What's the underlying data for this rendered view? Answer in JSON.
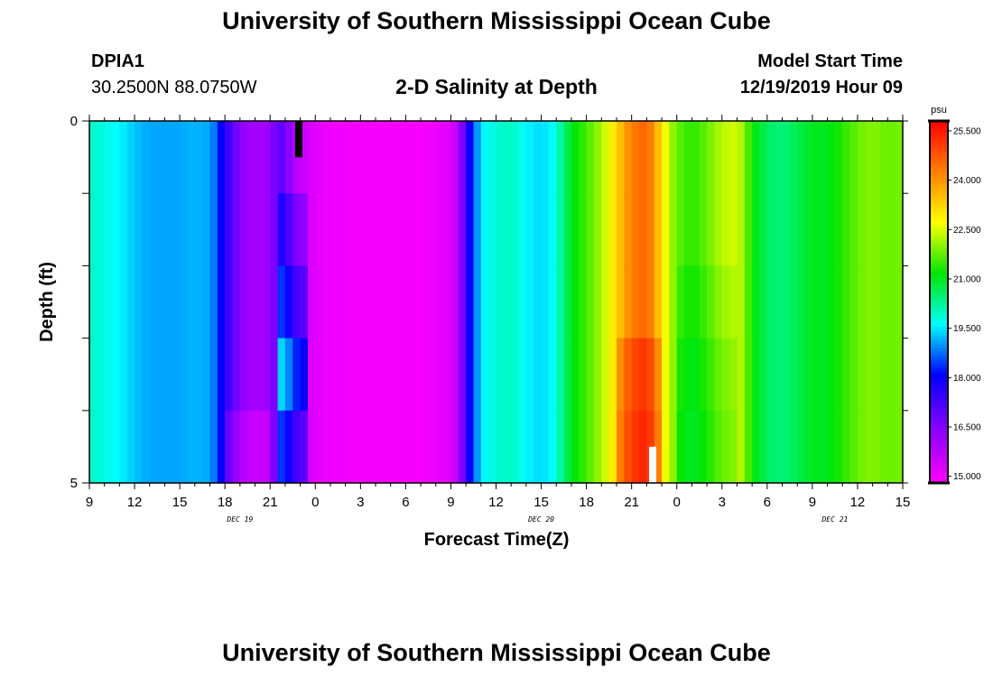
{
  "header": {
    "title": "University of Southern Mississippi Ocean Cube",
    "station": "DPIA1",
    "coords": "30.2500N 88.0750W",
    "subtitle": "2-D Salinity at Depth",
    "start_label": "Model Start Time",
    "start_time": "12/19/2019 Hour 09"
  },
  "footer": {
    "title": "University of Southern Mississippi Ocean Cube"
  },
  "chart_data": {
    "type": "heatmap",
    "xlabel": "Forecast Time(Z)",
    "ylabel": "Depth (ft)",
    "x_range_hours": [
      9,
      63
    ],
    "y_range": [
      0,
      5
    ],
    "y_ticks": [
      {
        "value": 0,
        "label": "0"
      },
      {
        "value": 1,
        "label": ""
      },
      {
        "value": 2,
        "label": ""
      },
      {
        "value": 3,
        "label": ""
      },
      {
        "value": 4,
        "label": ""
      },
      {
        "value": 5,
        "label": "5"
      }
    ],
    "x_tick_labels": [
      "9",
      "12",
      "15",
      "18",
      "21",
      "0",
      "3",
      "6",
      "9",
      "12",
      "15",
      "18",
      "21",
      "0",
      "3",
      "6",
      "9",
      "12",
      "15"
    ],
    "day_labels": [
      {
        "hour": 19,
        "label": "DEC 19"
      },
      {
        "hour": 39,
        "label": "DEC 20"
      },
      {
        "hour": 58.5,
        "label": "DEC 21"
      }
    ],
    "colorbar": {
      "unit": "psu",
      "range": [
        14.8,
        25.8
      ],
      "tick_labels": [
        "15.000",
        "16.500",
        "18.000",
        "19.500",
        "21.000",
        "22.500",
        "24.000",
        "25.500"
      ],
      "tick_values": [
        15.0,
        16.5,
        18.0,
        19.5,
        21.0,
        22.5,
        24.0,
        25.5
      ]
    },
    "time_step_hours": 0.5,
    "depth_layers": 5,
    "salinity_base": [
      [
        9,
        20.0
      ],
      [
        10,
        19.8
      ],
      [
        11,
        19.6
      ],
      [
        12,
        19.3
      ],
      [
        13,
        19.1
      ],
      [
        14,
        19.1
      ],
      [
        15,
        19.1
      ],
      [
        16,
        19.2
      ],
      [
        17,
        19.1
      ],
      [
        17.5,
        18.6
      ],
      [
        18,
        17.6
      ],
      [
        18.5,
        17.0
      ],
      [
        19,
        16.4
      ],
      [
        20,
        16.0
      ],
      [
        21,
        16.2
      ],
      [
        21.5,
        17.0
      ],
      [
        22,
        16.8
      ],
      [
        22.5,
        16.0
      ],
      [
        23,
        15.6
      ],
      [
        24,
        15.2
      ],
      [
        25,
        15.0
      ],
      [
        28,
        14.9
      ],
      [
        31,
        14.9
      ],
      [
        33,
        15.2
      ],
      [
        33.5,
        15.8
      ],
      [
        34,
        17.4
      ],
      [
        34.5,
        18.5
      ],
      [
        35,
        19.5
      ],
      [
        36,
        19.9
      ],
      [
        37,
        20.0
      ],
      [
        38,
        19.6
      ],
      [
        39,
        19.4
      ],
      [
        40,
        19.8
      ],
      [
        40.5,
        20.5
      ],
      [
        41,
        21.0
      ],
      [
        41.5,
        21.3
      ],
      [
        42,
        21.6
      ],
      [
        43,
        22.2
      ],
      [
        44,
        23.2
      ],
      [
        44.5,
        23.8
      ],
      [
        45,
        24.3
      ],
      [
        46,
        24.6
      ],
      [
        46.5,
        24.0
      ],
      [
        47,
        23.0
      ],
      [
        47.5,
        22.3
      ],
      [
        48,
        21.8
      ],
      [
        49,
        21.4
      ],
      [
        50,
        21.8
      ],
      [
        51,
        22.3
      ],
      [
        52,
        22.5
      ],
      [
        52.5,
        22.0
      ],
      [
        53,
        21.2
      ],
      [
        54,
        20.6
      ],
      [
        55,
        20.4
      ],
      [
        56,
        20.7
      ],
      [
        57,
        21.0
      ],
      [
        58,
        21.0
      ],
      [
        59,
        21.4
      ],
      [
        60,
        21.8
      ],
      [
        61,
        22.0
      ],
      [
        62,
        21.8
      ],
      [
        63,
        21.9
      ]
    ],
    "depth_adjust": [
      {
        "t0": 18,
        "t1": 21,
        "d": [
          0,
          0,
          0,
          0,
          -0.5
        ]
      },
      {
        "t0": 21.5,
        "t1": 23.5,
        "d": [
          0,
          0.8,
          1.5,
          2.5,
          1.5
        ]
      },
      {
        "t0": 44,
        "t1": 47,
        "d": [
          0,
          0,
          0,
          0.6,
          0.8
        ]
      },
      {
        "t0": 48,
        "t1": 52,
        "d": [
          0,
          0,
          -0.2,
          -0.4,
          -0.5
        ]
      }
    ],
    "missing_markers": [
      {
        "hour": 22.9,
        "depth": [
          0,
          0.5
        ],
        "color": "#000000"
      },
      {
        "hour": 46.4,
        "depth": [
          4.5,
          5.0
        ],
        "color": "#ffffff"
      }
    ]
  }
}
